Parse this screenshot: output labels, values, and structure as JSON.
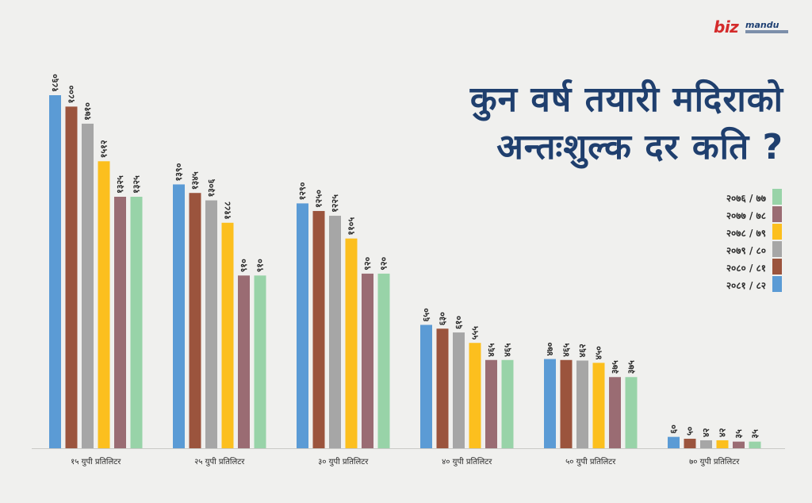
{
  "brand": {
    "logo_text": "bizmandu"
  },
  "title": "कुन वर्ष तयारी मदिराको अन्तःशुल्क दर कति ?",
  "colors": {
    "background": "#f0f0ee",
    "title": "#1f3f6e",
    "label_text": "#2a2a2a"
  },
  "legend": [
    {
      "label": "२०७६ / ७७",
      "color": "#98d3a8"
    },
    {
      "label": "२०७७ / ७८",
      "color": "#9a6c73"
    },
    {
      "label": "२०७८ / ७९",
      "color": "#fcbf1e"
    },
    {
      "label": "२०७९ / ८०",
      "color": "#a6a6a6"
    },
    {
      "label": "२०८० / ८१",
      "color": "#9b543d"
    },
    {
      "label": "२०८१ / ८२",
      "color": "#5b9bd5"
    }
  ],
  "chart_data": {
    "type": "bar",
    "title": "कुन वर्ष तयारी मदिराको अन्तःशुल्क दर कति ?",
    "categories": [
      "१५ युपी प्रतिलिटर",
      "२५ युपी प्रतिलिटर",
      "३० युपी प्रतिलिटर",
      "४० युपी प्रतिलिटर",
      "५० युपी प्रतिलिटर",
      "७० युपी प्रतिलिटर"
    ],
    "series": [
      {
        "name": "२०८१ / ८२",
        "color": "#5b9bd5",
        "values": [
          1860,
          1390,
          1290,
          650,
          470,
          60
        ],
        "labels": [
          "१८६०",
          "१३९०",
          "१२९०",
          "६५०",
          "४७०",
          "६०"
        ]
      },
      {
        "name": "२०८० / ८१",
        "color": "#9b543d",
        "values": [
          1800,
          1345,
          1250,
          630,
          465,
          50
        ],
        "labels": [
          "१८००",
          "१३४५",
          "१२५०",
          "६३०",
          "४६५",
          "५०"
        ]
      },
      {
        "name": "२०७९ / ८०",
        "color": "#a6a6a6",
        "values": [
          1710,
          1306,
          1225,
          610,
          462,
          42
        ],
        "labels": [
          "१७१०",
          "१३०६",
          "१२२५",
          "६१०",
          "४६२",
          "४२"
        ]
      },
      {
        "name": "२०७८ / ७९",
        "color": "#fcbf1e",
        "values": [
          1512,
          1188,
          1105,
          555,
          450,
          42
        ],
        "labels": [
          "१५१२",
          "११८८",
          "११०५",
          "५५५",
          "४५०",
          "४२"
        ]
      },
      {
        "name": "२०७७ / ७८",
        "color": "#9a6c73",
        "values": [
          1325,
          910,
          920,
          465,
          375,
          35
        ],
        "labels": [
          "१३२५",
          "९१०",
          "९२०",
          "४६५",
          "३७५",
          "३५"
        ]
      },
      {
        "name": "२०७६ / ७७",
        "color": "#98d3a8",
        "values": [
          1325,
          910,
          920,
          465,
          375,
          35
        ],
        "labels": [
          "१३२५",
          "९१०",
          "९२०",
          "४६५",
          "३७५",
          "३५"
        ]
      }
    ],
    "ylim": [
      0,
      1860
    ],
    "grid": false,
    "legend_position": "right"
  }
}
